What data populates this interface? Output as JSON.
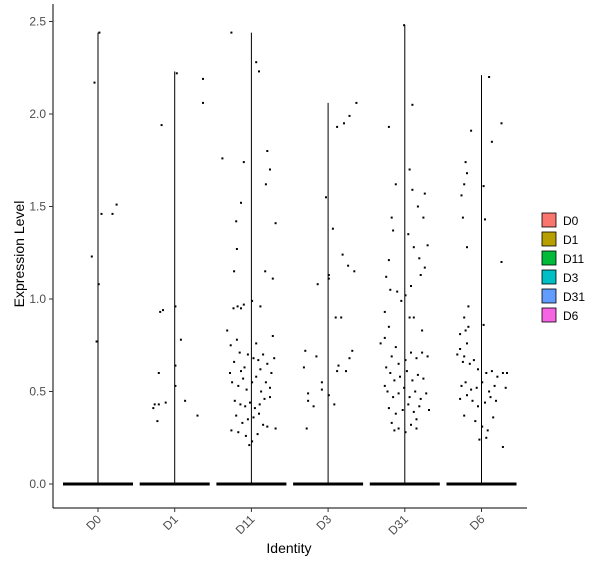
{
  "chart_data": {
    "type": "violin",
    "xlabel": "Identity",
    "ylabel": "Expression Level",
    "ylim": [
      -0.12,
      2.55
    ],
    "yticks": [
      "0.0",
      "0.5",
      "1.0",
      "1.5",
      "2.0",
      "2.5"
    ],
    "categories": [
      "D0",
      "D1",
      "D11",
      "D3",
      "D31",
      "D6"
    ],
    "legend": {
      "position": "right",
      "entries": [
        "D0",
        "D1",
        "D11",
        "D3",
        "D31",
        "D6"
      ]
    },
    "colors": {
      "D0": "#F8766D",
      "D1": "#B79F00",
      "D11": "#00BA38",
      "D3": "#00BFC4",
      "D31": "#619CFF",
      "D6": "#F564E3"
    },
    "max_values": {
      "D0": 2.44,
      "D1": 2.23,
      "D11": 2.44,
      "D3": 2.06,
      "D31": 2.48,
      "D6": 2.21
    },
    "groups": [
      {
        "name": "D0",
        "points": [
          [
            -0.09,
            1.23
          ],
          [
            0.05,
            1.46
          ],
          [
            0.21,
            1.46
          ],
          [
            -0.05,
            2.17
          ],
          [
            0.27,
            1.51
          ],
          [
            0.01,
            1.08
          ],
          [
            -0.02,
            0.77
          ],
          [
            0.02,
            2.44
          ]
        ]
      },
      {
        "name": "D1",
        "points": [
          [
            -0.23,
            0.6
          ],
          [
            -0.23,
            0.43
          ],
          [
            -0.29,
            0.43
          ],
          [
            -0.31,
            0.41
          ],
          [
            -0.13,
            0.44
          ],
          [
            -0.21,
            0.93
          ],
          [
            -0.17,
            0.94
          ],
          [
            -0.19,
            1.94
          ],
          [
            0.01,
            0.96
          ],
          [
            0.09,
            0.78
          ],
          [
            0.41,
            2.19
          ],
          [
            0.41,
            2.06
          ],
          [
            0.03,
            2.22
          ],
          [
            0.33,
            0.37
          ],
          [
            0.15,
            0.45
          ],
          [
            -0.25,
            0.34
          ],
          [
            0.01,
            0.53
          ],
          [
            0.01,
            0.64
          ]
        ]
      },
      {
        "name": "D11",
        "points": [
          [
            -0.42,
            1.76
          ],
          [
            -0.29,
            2.44
          ],
          [
            0.07,
            2.28
          ],
          [
            0.11,
            2.23
          ],
          [
            0.23,
            1.8
          ],
          [
            0.27,
            1.7
          ],
          [
            -0.11,
            1.74
          ],
          [
            0.21,
            1.62
          ],
          [
            -0.15,
            1.52
          ],
          [
            -0.22,
            1.42
          ],
          [
            -0.21,
            1.27
          ],
          [
            0.35,
            1.41
          ],
          [
            -0.25,
            1.15
          ],
          [
            0.2,
            1.15
          ],
          [
            0.31,
            1.11
          ],
          [
            -0.26,
            0.95
          ],
          [
            -0.2,
            0.96
          ],
          [
            -0.15,
            0.95
          ],
          [
            -0.11,
            0.97
          ],
          [
            0.01,
            0.99
          ],
          [
            0.13,
            0.96
          ],
          [
            0.31,
            0.8
          ],
          [
            -0.3,
            0.75
          ],
          [
            -0.21,
            0.78
          ],
          [
            -0.17,
            0.71
          ],
          [
            0.07,
            0.76
          ],
          [
            -0.25,
            0.66
          ],
          [
            -0.15,
            0.61
          ],
          [
            -0.1,
            0.63
          ],
          [
            -0.05,
            0.7
          ],
          [
            0.03,
            0.68
          ],
          [
            0.1,
            0.67
          ],
          [
            0.17,
            0.7
          ],
          [
            0.23,
            0.65
          ],
          [
            0.33,
            0.68
          ],
          [
            -0.28,
            0.55
          ],
          [
            -0.19,
            0.53
          ],
          [
            -0.12,
            0.57
          ],
          [
            -0.07,
            0.51
          ],
          [
            0.01,
            0.55
          ],
          [
            0.07,
            0.58
          ],
          [
            0.14,
            0.5
          ],
          [
            0.21,
            0.55
          ],
          [
            0.29,
            0.6
          ],
          [
            -0.24,
            0.45
          ],
          [
            -0.16,
            0.43
          ],
          [
            -0.09,
            0.42
          ],
          [
            -0.02,
            0.44
          ],
          [
            0.05,
            0.41
          ],
          [
            0.12,
            0.43
          ],
          [
            0.19,
            0.46
          ],
          [
            0.27,
            0.47
          ],
          [
            -0.22,
            0.37
          ],
          [
            -0.13,
            0.33
          ],
          [
            -0.05,
            0.35
          ],
          [
            0.03,
            0.36
          ],
          [
            0.11,
            0.38
          ],
          [
            0.17,
            0.32
          ],
          [
            -0.29,
            0.29
          ],
          [
            -0.19,
            0.28
          ],
          [
            -0.08,
            0.26
          ],
          [
            0.01,
            0.23
          ],
          [
            0.09,
            0.27
          ],
          [
            0.23,
            0.31
          ],
          [
            0.35,
            0.3
          ],
          [
            -0.03,
            0.21
          ],
          [
            0.27,
            0.52
          ],
          [
            -0.31,
            0.6
          ],
          [
            0.13,
            0.62
          ],
          [
            -0.35,
            0.83
          ]
        ]
      },
      {
        "name": "D3",
        "points": [
          [
            -0.33,
            0.72
          ],
          [
            -0.15,
            1.08
          ],
          [
            -0.03,
            1.55
          ],
          [
            0.13,
            1.93
          ],
          [
            0.23,
            1.95
          ],
          [
            0.31,
            1.99
          ],
          [
            0.41,
            2.06
          ],
          [
            0.07,
            1.38
          ],
          [
            0.21,
            1.24
          ],
          [
            0.29,
            1.18
          ],
          [
            0.38,
            1.15
          ],
          [
            0.01,
            1.13
          ],
          [
            0.01,
            1.11
          ],
          [
            0.19,
            0.9
          ],
          [
            0.11,
            0.9
          ],
          [
            0.35,
            0.72
          ],
          [
            0.31,
            0.68
          ],
          [
            0.15,
            0.64
          ],
          [
            0.13,
            0.61
          ],
          [
            -0.17,
            0.69
          ],
          [
            -0.29,
            0.49
          ],
          [
            -0.29,
            0.45
          ],
          [
            -0.21,
            0.42
          ],
          [
            -0.09,
            0.55
          ],
          [
            -0.09,
            0.51
          ],
          [
            0.01,
            0.48
          ],
          [
            0.09,
            0.43
          ],
          [
            0.26,
            0.61
          ],
          [
            -0.31,
            0.3
          ],
          [
            -0.35,
            0.63
          ]
        ]
      },
      {
        "name": "D31",
        "points": [
          [
            -0.23,
            1.93
          ],
          [
            -0.01,
            2.48
          ],
          [
            0.11,
            2.05
          ],
          [
            0.29,
            1.57
          ],
          [
            0.19,
            1.5
          ],
          [
            0.27,
            1.44
          ],
          [
            0.11,
            1.59
          ],
          [
            0.07,
            1.7
          ],
          [
            -0.13,
            1.62
          ],
          [
            -0.19,
            1.44
          ],
          [
            -0.17,
            1.37
          ],
          [
            -0.23,
            1.21
          ],
          [
            -0.27,
            1.12
          ],
          [
            -0.21,
            1.05
          ],
          [
            -0.11,
            1.04
          ],
          [
            0.05,
            1.35
          ],
          [
            0.13,
            1.28
          ],
          [
            0.21,
            1.22
          ],
          [
            0.33,
            1.29
          ],
          [
            0.29,
            1.17
          ],
          [
            0.23,
            1.13
          ],
          [
            0.09,
            1.07
          ],
          [
            0.01,
            1.02
          ],
          [
            -0.29,
            0.93
          ],
          [
            -0.05,
            0.99
          ],
          [
            0.07,
            0.9
          ],
          [
            0.13,
            0.9
          ],
          [
            -0.23,
            0.85
          ],
          [
            -0.29,
            0.79
          ],
          [
            -0.35,
            0.76
          ],
          [
            -0.19,
            0.69
          ],
          [
            -0.13,
            0.74
          ],
          [
            -0.09,
            0.65
          ],
          [
            0.01,
            0.67
          ],
          [
            0.09,
            0.71
          ],
          [
            0.17,
            0.68
          ],
          [
            0.25,
            0.71
          ],
          [
            0.33,
            0.69
          ],
          [
            -0.27,
            0.63
          ],
          [
            -0.21,
            0.6
          ],
          [
            -0.15,
            0.56
          ],
          [
            -0.07,
            0.58
          ],
          [
            0.03,
            0.61
          ],
          [
            0.11,
            0.56
          ],
          [
            0.19,
            0.59
          ],
          [
            0.27,
            0.57
          ],
          [
            -0.25,
            0.5
          ],
          [
            -0.17,
            0.47
          ],
          [
            -0.09,
            0.49
          ],
          [
            -0.01,
            0.52
          ],
          [
            0.07,
            0.47
          ],
          [
            0.15,
            0.5
          ],
          [
            0.23,
            0.46
          ],
          [
            0.31,
            0.49
          ],
          [
            -0.23,
            0.41
          ],
          [
            -0.13,
            0.38
          ],
          [
            -0.03,
            0.4
          ],
          [
            0.05,
            0.43
          ],
          [
            0.13,
            0.39
          ],
          [
            0.21,
            0.42
          ],
          [
            -0.19,
            0.33
          ],
          [
            -0.09,
            0.3
          ],
          [
            0.01,
            0.28
          ],
          [
            0.09,
            0.32
          ],
          [
            0.17,
            0.35
          ],
          [
            -0.29,
            0.53
          ],
          [
            0.35,
            0.4
          ],
          [
            -0.15,
            0.29
          ],
          [
            0.25,
            0.83
          ],
          [
            0.17,
            0.3
          ]
        ]
      },
      {
        "name": "D6",
        "points": [
          [
            -0.15,
            1.91
          ],
          [
            0.11,
            2.2
          ],
          [
            0.29,
            1.95
          ],
          [
            0.15,
            1.85
          ],
          [
            -0.23,
            1.74
          ],
          [
            -0.21,
            1.68
          ],
          [
            -0.25,
            1.62
          ],
          [
            -0.29,
            1.56
          ],
          [
            0.03,
            1.61
          ],
          [
            -0.27,
            1.44
          ],
          [
            0.05,
            1.43
          ],
          [
            -0.21,
            1.28
          ],
          [
            0.29,
            1.2
          ],
          [
            -0.19,
            0.96
          ],
          [
            -0.25,
            0.9
          ],
          [
            0.03,
            0.86
          ],
          [
            -0.31,
            0.81
          ],
          [
            -0.23,
            0.83
          ],
          [
            -0.19,
            0.85
          ],
          [
            -0.21,
            0.76
          ],
          [
            -0.31,
            0.73
          ],
          [
            -0.25,
            0.69
          ],
          [
            -0.35,
            0.7
          ],
          [
            -0.27,
            0.66
          ],
          [
            -0.17,
            0.65
          ],
          [
            -0.11,
            0.67
          ],
          [
            -0.05,
            0.62
          ],
          [
            0.07,
            0.6
          ],
          [
            0.15,
            0.61
          ],
          [
            0.23,
            0.58
          ],
          [
            0.31,
            0.6
          ],
          [
            0.37,
            0.6
          ],
          [
            -0.29,
            0.53
          ],
          [
            -0.23,
            0.55
          ],
          [
            -0.15,
            0.51
          ],
          [
            -0.07,
            0.52
          ],
          [
            0.01,
            0.55
          ],
          [
            0.11,
            0.5
          ],
          [
            0.19,
            0.53
          ],
          [
            0.35,
            0.52
          ],
          [
            -0.31,
            0.46
          ],
          [
            -0.21,
            0.48
          ],
          [
            -0.13,
            0.45
          ],
          [
            -0.05,
            0.42
          ],
          [
            0.05,
            0.44
          ],
          [
            0.13,
            0.47
          ],
          [
            0.21,
            0.45
          ],
          [
            -0.25,
            0.37
          ],
          [
            -0.09,
            0.34
          ],
          [
            0.01,
            0.31
          ],
          [
            0.09,
            0.29
          ],
          [
            0.17,
            0.36
          ],
          [
            -0.03,
            0.24
          ],
          [
            0.31,
            0.2
          ],
          [
            0.07,
            0.25
          ]
        ]
      }
    ]
  }
}
